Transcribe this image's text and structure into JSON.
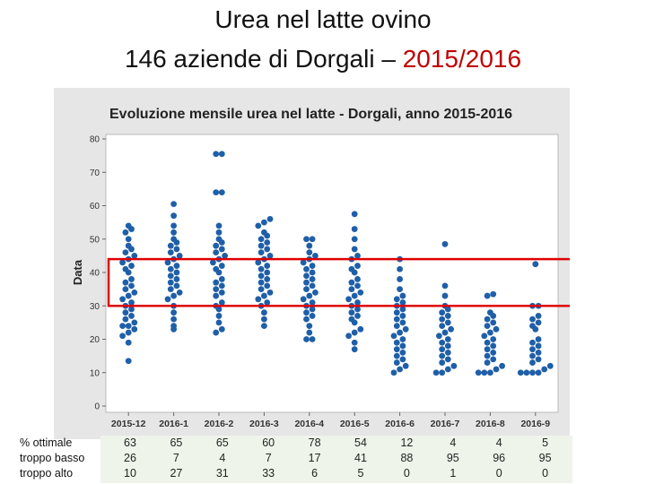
{
  "slide": {
    "title_line1": "Urea nel latte ovino",
    "title_line2_prefix": "146 aziende  di Dorgali – ",
    "title_line2_year": "2015/2016",
    "accent_color": "#c00000"
  },
  "chart_data": {
    "type": "scatter",
    "title": "Evoluzione mensile urea nel latte - Dorgali, anno 2015-2016",
    "xlabel": "",
    "ylabel": "Data",
    "ylim": [
      0,
      80
    ],
    "yticks": [
      0,
      10,
      20,
      30,
      40,
      50,
      60,
      70,
      80
    ],
    "categories": [
      "2015-12",
      "2016-1",
      "2016-2",
      "2016-3",
      "2016-4",
      "2016-5",
      "2016-6",
      "2016-7",
      "2016-8",
      "2016-9"
    ],
    "grid": false,
    "point_color": "#1f5fa8",
    "highlight_range": [
      30,
      44
    ],
    "highlight_color": "#e00000",
    "series": [
      {
        "category": "2015-12",
        "values": [
          13.5,
          19,
          21,
          22,
          23,
          24,
          24,
          25,
          26,
          27,
          28,
          29,
          30,
          31,
          32,
          33,
          34,
          35,
          36,
          37,
          38,
          40,
          41,
          42,
          43,
          44,
          45,
          46,
          47,
          48,
          50,
          52,
          53,
          54
        ]
      },
      {
        "category": "2016-1",
        "values": [
          23,
          24,
          26,
          28,
          30,
          32,
          33,
          34,
          35,
          36,
          37,
          38,
          39,
          40,
          41,
          42,
          43,
          44,
          45,
          46,
          47,
          48,
          49,
          50,
          52,
          54,
          57,
          60.5
        ]
      },
      {
        "category": "2016-2",
        "values": [
          22,
          23,
          25,
          27,
          29,
          30,
          31,
          33,
          34,
          35,
          36,
          37,
          38,
          40,
          41,
          42,
          43,
          44,
          45,
          46,
          47,
          48,
          49,
          50,
          52,
          54,
          64,
          64,
          75.5,
          75.5
        ]
      },
      {
        "category": "2016-3",
        "values": [
          24,
          26,
          28,
          30,
          31,
          32,
          33,
          34,
          35,
          36,
          37,
          38,
          39,
          40,
          41,
          42,
          43,
          44,
          45,
          46,
          47,
          48,
          49,
          50,
          51,
          52,
          54,
          55,
          56
        ]
      },
      {
        "category": "2016-4",
        "values": [
          20,
          20,
          22,
          24,
          26,
          27,
          28,
          29,
          30,
          31,
          32,
          33,
          34,
          35,
          36,
          37,
          38,
          39,
          40,
          41,
          42,
          43,
          44,
          45,
          46,
          48,
          50,
          50
        ]
      },
      {
        "category": "2016-5",
        "values": [
          17,
          19,
          21,
          22,
          23,
          25,
          26,
          27,
          28,
          29,
          30,
          31,
          32,
          33,
          34,
          35,
          36,
          37,
          38,
          40,
          41,
          42,
          44,
          45,
          47,
          50,
          53,
          57.5
        ]
      },
      {
        "category": "2016-6",
        "values": [
          10,
          11,
          12,
          13,
          14,
          15,
          16,
          17,
          18,
          19,
          20,
          21,
          22,
          23,
          24,
          25,
          26,
          27,
          28,
          29,
          30,
          31,
          32,
          33,
          35,
          38,
          41,
          44
        ]
      },
      {
        "category": "2016-7",
        "values": [
          10,
          10,
          11,
          12,
          13,
          14,
          15,
          16,
          17,
          18,
          19,
          20,
          21,
          22,
          23,
          24,
          25,
          26,
          27,
          28,
          29,
          30,
          33,
          36,
          48.5
        ]
      },
      {
        "category": "2016-8",
        "values": [
          10,
          10,
          10,
          11,
          12,
          13,
          14,
          15,
          16,
          17,
          18,
          19,
          20,
          21,
          22,
          23,
          24,
          25,
          26,
          27,
          28,
          33,
          33.5
        ]
      },
      {
        "category": "2016-9",
        "values": [
          10,
          10,
          10,
          10,
          11,
          12,
          13,
          14,
          15,
          16,
          17,
          18,
          19,
          20,
          23,
          24,
          25,
          26,
          27,
          30,
          30,
          42.5
        ]
      }
    ]
  },
  "summary_table": {
    "rows": [
      {
        "label": "% ottimale",
        "values": [
          "63",
          "65",
          "65",
          "60",
          "78",
          "54",
          "12",
          "4",
          "4",
          "5"
        ]
      },
      {
        "label": "troppo basso",
        "values": [
          "26",
          "7",
          "4",
          "7",
          "17",
          "41",
          "88",
          "95",
          "96",
          "95"
        ]
      },
      {
        "label": "troppo alto",
        "values": [
          "10",
          "27",
          "31",
          "33",
          "6",
          "5",
          "0",
          "1",
          "0",
          "0"
        ]
      }
    ]
  }
}
